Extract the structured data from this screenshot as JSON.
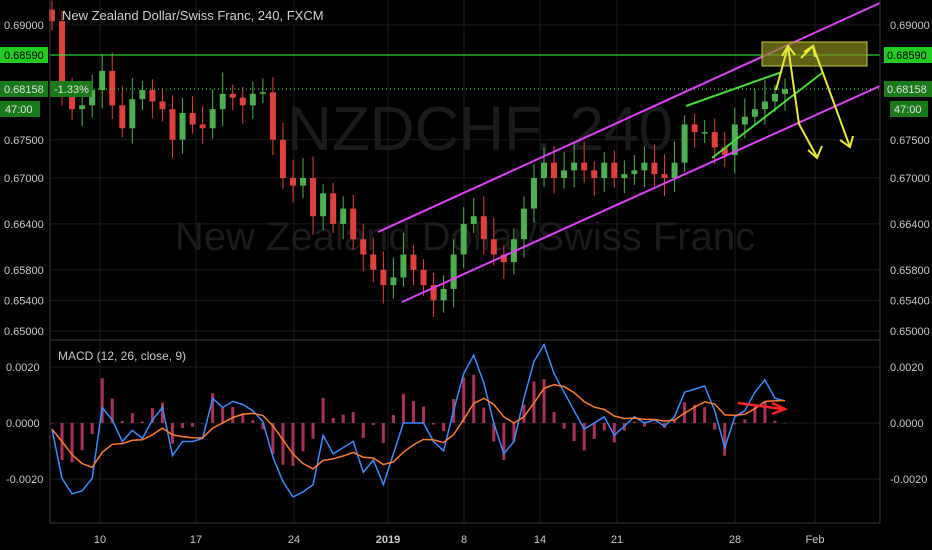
{
  "title": "New Zealand Dollar/Swiss Franc, 240, FXCM",
  "watermark": {
    "symbol": "NZDCHF, 240",
    "name": "New Zealand Dollar/Swiss Franc"
  },
  "price_axis": {
    "ticks": [
      "0.69000",
      "0.68590",
      "0.68158",
      "0.67500",
      "0.67000",
      "0.66400",
      "0.65800",
      "0.65400",
      "0.65000"
    ],
    "tick_values": [
      0.69,
      0.6859,
      0.68158,
      0.675,
      0.67,
      0.664,
      0.658,
      0.654,
      0.65
    ],
    "resistance_label": "0.68590",
    "current_label": "0.68158",
    "change_label": "-1.33%",
    "countdown_label": "47:00"
  },
  "macd": {
    "label": "MACD (12, 26, close, 9)",
    "ticks": [
      "0.0020",
      "0.0000",
      "-0.0020"
    ],
    "tick_values": [
      0.002,
      0.0,
      -0.002
    ]
  },
  "time_axis": {
    "labels": [
      "10",
      "17",
      "24",
      "2019",
      "8",
      "14",
      "21",
      "28",
      "Feb"
    ]
  },
  "colors": {
    "bull": "#4caf50",
    "bear": "#e0403c",
    "channel": "#e040fb",
    "wedge": "#44dd33",
    "resistance": "#33ff33",
    "projection": "#e8e83a",
    "macd_line": "#3d8bfd",
    "signal_line": "#ff7b2e",
    "hist_pos": "#a8325a",
    "hist_neg": "#a8325a",
    "macd_arrow": "#ff2222"
  },
  "chart_data": {
    "type": "candlestick",
    "series": [
      {
        "name": "NZD/CHF",
        "close": [
          0.6905,
          0.6815,
          0.679,
          0.6795,
          0.6815,
          0.684,
          0.6795,
          0.6765,
          0.6803,
          0.6815,
          0.68,
          0.679,
          0.675,
          0.6785,
          0.677,
          0.6765,
          0.679,
          0.681,
          0.6805,
          0.6795,
          0.681,
          0.6812,
          0.675,
          0.67,
          0.669,
          0.67,
          0.665,
          0.668,
          0.664,
          0.666,
          0.662,
          0.66,
          0.658,
          0.656,
          0.657,
          0.66,
          0.658,
          0.656,
          0.654,
          0.6555,
          0.66,
          0.664,
          0.665,
          0.662,
          0.66,
          0.659,
          0.662,
          0.666,
          0.67,
          0.672,
          0.67,
          0.671,
          0.672,
          0.671,
          0.67,
          0.672,
          0.67,
          0.6705,
          0.671,
          0.672,
          0.6705,
          0.67,
          0.672,
          0.677,
          0.676,
          0.676,
          0.674,
          0.673,
          0.677,
          0.678,
          0.679,
          0.68,
          0.681,
          0.6816
        ]
      }
    ],
    "key_levels": {
      "resistance": 0.6859,
      "current": 0.68158
    },
    "macd_range": [
      -0.003,
      0.003
    ],
    "ylim": [
      0.6485,
      0.6915
    ]
  }
}
